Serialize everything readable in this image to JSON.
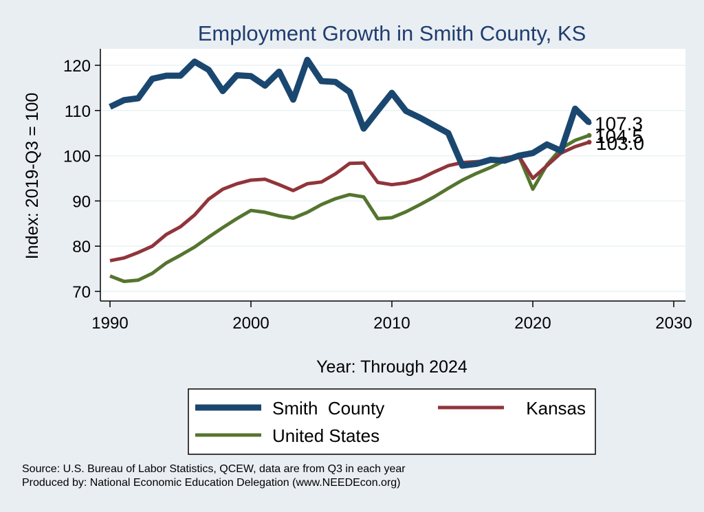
{
  "chart_data": {
    "type": "line",
    "title": "Employment Growth in Smith County, KS",
    "xlabel": "Year: Through 2024",
    "ylabel": "Index: 2019-Q3 = 100",
    "xlim": [
      1990,
      2030
    ],
    "ylim": [
      70,
      120
    ],
    "xticks": [
      1990,
      2000,
      2010,
      2020,
      2030
    ],
    "yticks": [
      70,
      80,
      90,
      100,
      110,
      120
    ],
    "grid": true,
    "legend_position": "bottom",
    "x": [
      1990,
      1991,
      1992,
      1993,
      1994,
      1995,
      1996,
      1997,
      1998,
      1999,
      2000,
      2001,
      2002,
      2003,
      2004,
      2005,
      2006,
      2007,
      2008,
      2009,
      2010,
      2011,
      2012,
      2013,
      2014,
      2015,
      2016,
      2017,
      2018,
      2019,
      2020,
      2021,
      2022,
      2023,
      2024
    ],
    "series": [
      {
        "name": "Smith  County",
        "color": "#1a476f",
        "end_label": "107.3",
        "values": [
          110.8,
          112.3,
          112.7,
          117.0,
          117.7,
          117.7,
          120.8,
          119.0,
          114.3,
          117.8,
          117.6,
          115.5,
          118.6,
          112.4,
          121.2,
          116.5,
          116.3,
          114.1,
          106.0,
          110.0,
          113.9,
          109.9,
          108.4,
          106.7,
          105.0,
          97.8,
          98.2,
          99.1,
          98.9,
          100.0,
          100.6,
          102.5,
          101.1,
          110.4,
          107.3
        ]
      },
      {
        "name": "Kansas",
        "color": "#90353b",
        "end_label": "103.0",
        "values": [
          76.8,
          77.4,
          78.6,
          80.0,
          82.6,
          84.3,
          86.9,
          90.4,
          92.6,
          93.8,
          94.6,
          94.8,
          93.6,
          92.3,
          93.8,
          94.2,
          96.0,
          98.3,
          98.4,
          94.1,
          93.6,
          94.0,
          94.9,
          96.4,
          97.8,
          98.5,
          98.7,
          98.9,
          99.5,
          100.0,
          95.0,
          97.8,
          100.6,
          102.0,
          103.0
        ]
      },
      {
        "name": "United States",
        "color": "#55752f",
        "end_label": "104.5",
        "values": [
          73.4,
          72.2,
          72.5,
          74.0,
          76.3,
          78.0,
          79.8,
          82.0,
          84.1,
          86.1,
          87.9,
          87.5,
          86.7,
          86.2,
          87.5,
          89.2,
          90.5,
          91.4,
          90.9,
          86.1,
          86.3,
          87.6,
          89.2,
          90.9,
          92.8,
          94.6,
          96.1,
          97.4,
          98.9,
          100.0,
          92.6,
          98.0,
          101.6,
          103.4,
          104.5
        ]
      }
    ]
  },
  "legend": {
    "items": [
      "Smith  County",
      "Kansas",
      "United States"
    ]
  },
  "source": {
    "line1": "Source: U.S. Bureau of Labor Statistics, QCEW, data are from Q3 in each year",
    "line2": "Produced by: National Economic Education Delegation (www.NEEDEcon.org)"
  }
}
